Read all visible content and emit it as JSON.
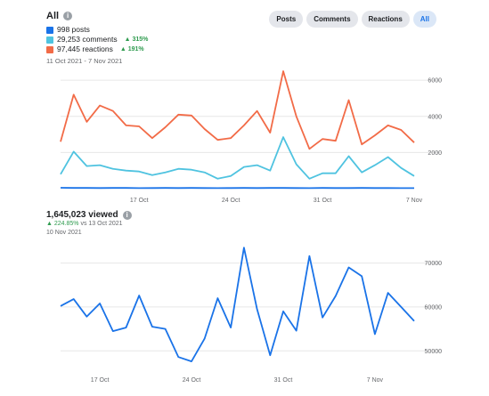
{
  "top": {
    "title": "All",
    "tabs": [
      "Posts",
      "Comments",
      "Reactions",
      "All"
    ],
    "active_tab": "All",
    "legend": [
      {
        "label": "998 posts",
        "color": "#1a73e8",
        "delta": ""
      },
      {
        "label": "29,253 comments",
        "color": "#4fc3e0",
        "delta": "▲ 315%"
      },
      {
        "label": "97,445 reactions",
        "color": "#f26b47",
        "delta": "▲ 191%"
      }
    ],
    "date_range": "11 Oct 2021 - 7 Nov 2021"
  },
  "bottom": {
    "title": "1,645,023 viewed",
    "delta": "▲ 224.85%",
    "vs": "vs 13 Oct 2021",
    "date": "10 Nov 2021"
  },
  "chart_data": [
    {
      "type": "line",
      "x": [
        "11 Oct",
        "12 Oct",
        "13 Oct",
        "14 Oct",
        "15 Oct",
        "16 Oct",
        "17 Oct",
        "18 Oct",
        "19 Oct",
        "20 Oct",
        "21 Oct",
        "22 Oct",
        "23 Oct",
        "24 Oct",
        "25 Oct",
        "26 Oct",
        "27 Oct",
        "28 Oct",
        "29 Oct",
        "30 Oct",
        "31 Oct",
        "1 Nov",
        "2 Nov",
        "3 Nov",
        "4 Nov",
        "5 Nov",
        "6 Nov",
        "7 Nov"
      ],
      "x_ticks": [
        "17 Oct",
        "24 Oct",
        "31 Oct",
        "7 Nov"
      ],
      "y_ticks": [
        2000,
        4000,
        6000
      ],
      "ylim": [
        0,
        6600
      ],
      "series": [
        {
          "name": "reactions",
          "color": "#f26b47",
          "values": [
            2600,
            5200,
            3700,
            4600,
            4300,
            3500,
            3450,
            2800,
            3400,
            4100,
            4050,
            3300,
            2700,
            2800,
            3500,
            4300,
            3100,
            6500,
            4000,
            2200,
            2750,
            2650,
            4900,
            2450,
            2950,
            3500,
            3250,
            2550
          ]
        },
        {
          "name": "comments",
          "color": "#4fc3e0",
          "values": [
            800,
            2050,
            1250,
            1300,
            1100,
            1000,
            950,
            750,
            900,
            1100,
            1050,
            900,
            550,
            700,
            1200,
            1300,
            1000,
            2850,
            1350,
            550,
            850,
            850,
            1800,
            900,
            1300,
            1750,
            1150,
            700
          ]
        },
        {
          "name": "posts",
          "color": "#1a73e8",
          "values": [
            50,
            40,
            40,
            35,
            40,
            38,
            30,
            35,
            40,
            36,
            38,
            35,
            30,
            35,
            40,
            36,
            38,
            40,
            35,
            30,
            38,
            36,
            35,
            38,
            36,
            35,
            30,
            32
          ]
        }
      ]
    },
    {
      "type": "line",
      "x_ticks": [
        "17 Oct",
        "24 Oct",
        "31 Oct",
        "7 Nov"
      ],
      "y_ticks": [
        50000,
        60000,
        70000
      ],
      "ylim": [
        46000,
        76000
      ],
      "series": [
        {
          "color": "#1a73e8",
          "values": [
            60200,
            61800,
            57800,
            60800,
            54500,
            55300,
            62600,
            55500,
            55000,
            48600,
            47600,
            52800,
            62000,
            55300,
            73500,
            59500,
            49000,
            59000,
            54600,
            71600,
            57600,
            62500,
            69000,
            67000,
            53800,
            63200,
            60000,
            56800
          ]
        }
      ]
    }
  ]
}
